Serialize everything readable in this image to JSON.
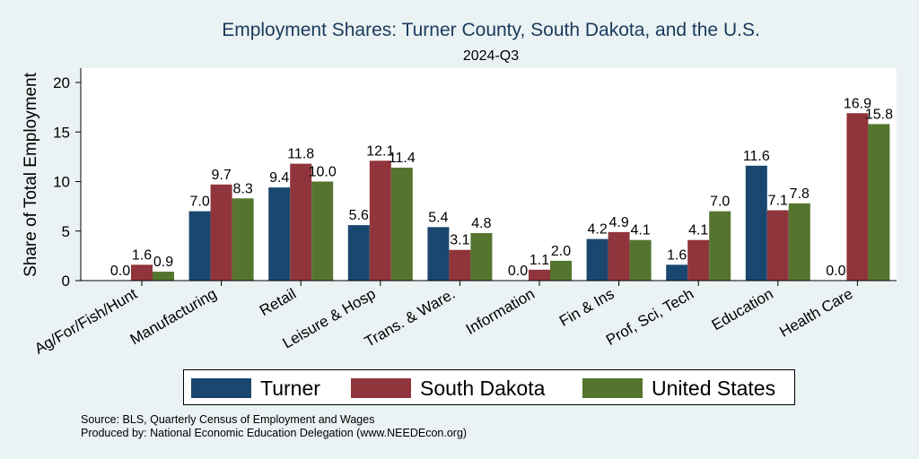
{
  "chart_data": {
    "type": "bar",
    "title": "Employment Shares: Turner County, South Dakota, and the U.S.",
    "subtitle": "2024-Q3",
    "ylabel": "Share of Total Employment",
    "xlabel": "",
    "ylim": [
      0,
      21.5
    ],
    "yticks": [
      0,
      5,
      10,
      15,
      20
    ],
    "categories": [
      "Ag/For/Fish/Hunt",
      "Manufacturing",
      "Retail",
      "Leisure & Hosp",
      "Trans. & Ware.",
      "Information",
      "Fin & Ins",
      "Prof, Sci, Tech",
      "Education",
      "Health Care"
    ],
    "series": [
      {
        "name": "Turner",
        "color": "#1a476f",
        "values": [
          0.0,
          7.0,
          9.4,
          5.6,
          5.4,
          0.0,
          4.2,
          1.6,
          11.6,
          0.0
        ]
      },
      {
        "name": "South Dakota",
        "color": "#90353b",
        "values": [
          1.6,
          9.7,
          11.8,
          12.1,
          3.1,
          1.1,
          4.9,
          4.1,
          7.1,
          16.9
        ]
      },
      {
        "name": "United States",
        "color": "#55752f",
        "values": [
          0.9,
          8.3,
          10.0,
          11.4,
          4.8,
          2.0,
          4.1,
          7.0,
          7.8,
          15.8
        ]
      }
    ],
    "grid": false,
    "legend_position": "bottom"
  },
  "source_line": "Source: BLS, Quarterly Census of Employment and Wages",
  "produced_line": "Produced by: National Economic Education Delegation (www.NEEDEcon.org)"
}
